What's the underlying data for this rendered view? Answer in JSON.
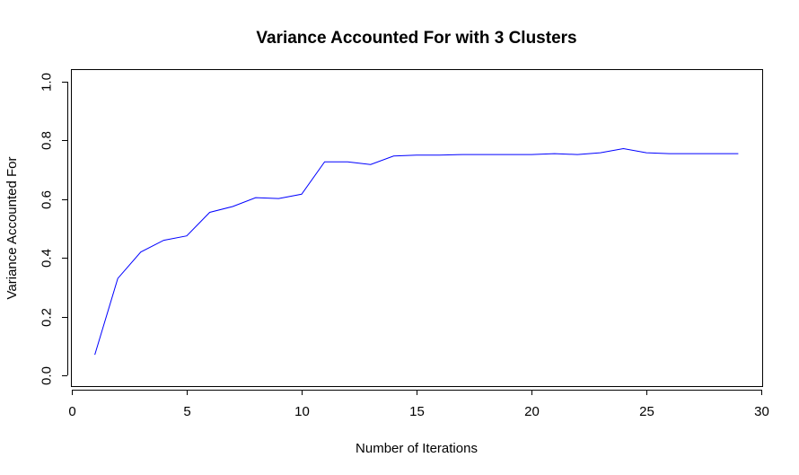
{
  "chart_data": {
    "type": "line",
    "title": "Variance Accounted For with 3 Clusters",
    "xlabel": "Number of Iterations",
    "ylabel": "Variance Accounted For",
    "xlim": [
      0,
      30
    ],
    "ylim": [
      0,
      1
    ],
    "xticks": [
      0,
      5,
      10,
      15,
      20,
      25,
      30
    ],
    "yticks": [
      "0.0",
      "0.2",
      "0.4",
      "0.6",
      "0.8",
      "1.0"
    ],
    "grid": false,
    "legend": "none",
    "x": [
      1,
      2,
      3,
      4,
      5,
      6,
      7,
      8,
      9,
      10,
      11,
      12,
      13,
      14,
      15,
      16,
      17,
      18,
      19,
      20,
      21,
      22,
      23,
      24,
      25,
      26,
      27,
      28,
      29
    ],
    "series": [
      {
        "color": "#0000ff",
        "values": [
          0.07,
          0.33,
          0.42,
          0.46,
          0.475,
          0.555,
          0.575,
          0.605,
          0.602,
          0.617,
          0.727,
          0.727,
          0.718,
          0.747,
          0.75,
          0.75,
          0.752,
          0.752,
          0.752,
          0.752,
          0.755,
          0.752,
          0.758,
          0.772,
          0.758,
          0.755,
          0.755,
          0.755,
          0.755
        ]
      }
    ]
  }
}
